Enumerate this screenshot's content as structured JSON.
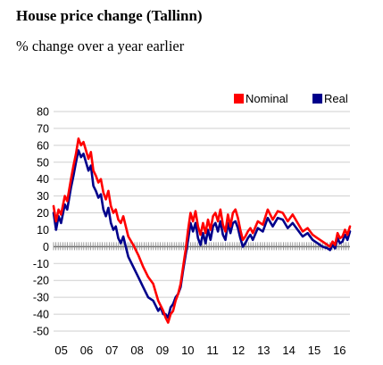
{
  "header": {
    "title": "House price change (Tallinn)",
    "subtitle": "% change over a year earlier"
  },
  "chart_data": {
    "type": "line",
    "title": "House price change (Tallinn)",
    "subtitle": "% change over a year earlier",
    "xlabel": "",
    "ylabel": "",
    "x_unit": "year (decimal)",
    "xlim": [
      2005.0,
      2016.9
    ],
    "ylim": [
      -50,
      80
    ],
    "yticks": [
      80,
      70,
      60,
      50,
      40,
      30,
      20,
      10,
      0,
      -10,
      -20,
      -30,
      -40,
      -50
    ],
    "xticks": [
      "05",
      "06",
      "07",
      "08",
      "09",
      "10",
      "11",
      "12",
      "13",
      "14",
      "15",
      "16"
    ],
    "legend": {
      "position": "top-right",
      "entries": [
        "Nominal",
        "Real"
      ]
    },
    "grid": "horizontal",
    "colors": {
      "Nominal": "#ff0000",
      "Real": "#00008b"
    },
    "series": [
      {
        "name": "Nominal",
        "color": "#ff0000",
        "x": [
          2005.0,
          2005.1,
          2005.2,
          2005.3,
          2005.45,
          2005.55,
          2005.7,
          2005.8,
          2005.9,
          2006.0,
          2006.1,
          2006.2,
          2006.3,
          2006.4,
          2006.5,
          2006.6,
          2006.7,
          2006.8,
          2006.9,
          2007.0,
          2007.1,
          2007.2,
          2007.3,
          2007.4,
          2007.5,
          2007.6,
          2007.7,
          2007.8,
          2007.9,
          2008.0,
          2008.2,
          2008.4,
          2008.6,
          2008.8,
          2009.0,
          2009.1,
          2009.2,
          2009.3,
          2009.4,
          2009.5,
          2009.6,
          2009.7,
          2009.8,
          2009.9,
          2010.0,
          2010.1,
          2010.2,
          2010.3,
          2010.4,
          2010.5,
          2010.6,
          2010.7,
          2010.8,
          2010.9,
          2011.0,
          2011.1,
          2011.2,
          2011.3,
          2011.4,
          2011.5,
          2011.6,
          2011.7,
          2011.8,
          2011.9,
          2012.0,
          2012.1,
          2012.2,
          2012.3,
          2012.4,
          2012.5,
          2012.6,
          2012.7,
          2012.8,
          2012.9,
          2013.0,
          2013.2,
          2013.4,
          2013.6,
          2013.8,
          2014.0,
          2014.2,
          2014.4,
          2014.6,
          2014.8,
          2015.0,
          2015.2,
          2015.4,
          2015.6,
          2015.8,
          2016.0,
          2016.1,
          2016.2,
          2016.3,
          2016.4,
          2016.5,
          2016.6,
          2016.7,
          2016.8,
          2016.9
        ],
        "values": [
          24,
          15,
          22,
          19,
          30,
          27,
          40,
          48,
          55,
          64,
          60,
          62,
          57,
          52,
          56,
          45,
          42,
          38,
          40,
          32,
          28,
          33,
          24,
          20,
          22,
          16,
          14,
          18,
          12,
          6,
          1,
          -5,
          -12,
          -18,
          -22,
          -27,
          -32,
          -35,
          -38,
          -42,
          -45,
          -40,
          -38,
          -32,
          -28,
          -22,
          -12,
          -2,
          10,
          20,
          15,
          21,
          12,
          7,
          14,
          8,
          16,
          10,
          18,
          20,
          15,
          22,
          13,
          9,
          19,
          12,
          20,
          22,
          17,
          10,
          4,
          6,
          9,
          11,
          8,
          15,
          13,
          22,
          16,
          21,
          20,
          15,
          19,
          14,
          9,
          11,
          7,
          5,
          3,
          1,
          0,
          3,
          1,
          8,
          5,
          6,
          10,
          7,
          12
        ]
      },
      {
        "name": "Real",
        "color": "#00008b",
        "x": [
          2005.0,
          2005.1,
          2005.2,
          2005.3,
          2005.45,
          2005.55,
          2005.7,
          2005.8,
          2005.9,
          2006.0,
          2006.1,
          2006.2,
          2006.3,
          2006.4,
          2006.5,
          2006.6,
          2006.7,
          2006.8,
          2006.9,
          2007.0,
          2007.1,
          2007.2,
          2007.3,
          2007.4,
          2007.5,
          2007.6,
          2007.7,
          2007.8,
          2007.9,
          2008.0,
          2008.2,
          2008.4,
          2008.6,
          2008.8,
          2009.0,
          2009.1,
          2009.2,
          2009.3,
          2009.4,
          2009.5,
          2009.6,
          2009.7,
          2009.8,
          2009.9,
          2010.0,
          2010.1,
          2010.2,
          2010.3,
          2010.4,
          2010.5,
          2010.6,
          2010.7,
          2010.8,
          2010.9,
          2011.0,
          2011.1,
          2011.2,
          2011.3,
          2011.4,
          2011.5,
          2011.6,
          2011.7,
          2011.8,
          2011.9,
          2012.0,
          2012.1,
          2012.2,
          2012.3,
          2012.4,
          2012.5,
          2012.6,
          2012.7,
          2012.8,
          2012.9,
          2013.0,
          2013.2,
          2013.4,
          2013.6,
          2013.8,
          2014.0,
          2014.2,
          2014.4,
          2014.6,
          2014.8,
          2015.0,
          2015.2,
          2015.4,
          2015.6,
          2015.8,
          2016.0,
          2016.1,
          2016.2,
          2016.3,
          2016.4,
          2016.5,
          2016.6,
          2016.7,
          2016.8,
          2016.9
        ],
        "values": [
          20,
          10,
          18,
          14,
          25,
          22,
          35,
          42,
          50,
          57,
          53,
          55,
          50,
          45,
          48,
          36,
          33,
          29,
          31,
          22,
          18,
          23,
          14,
          10,
          12,
          5,
          2,
          6,
          0,
          -6,
          -12,
          -18,
          -24,
          -30,
          -32,
          -35,
          -38,
          -36,
          -40,
          -40,
          -42,
          -36,
          -34,
          -30,
          -28,
          -24,
          -14,
          -5,
          4,
          14,
          9,
          14,
          5,
          1,
          8,
          2,
          10,
          4,
          12,
          14,
          9,
          15,
          7,
          4,
          14,
          8,
          14,
          15,
          11,
          5,
          0,
          2,
          5,
          7,
          4,
          11,
          9,
          17,
          12,
          17,
          16,
          11,
          14,
          10,
          6,
          8,
          4,
          2,
          0,
          -1,
          -2,
          1,
          -1,
          5,
          2,
          3,
          7,
          4,
          9
        ]
      }
    ]
  }
}
